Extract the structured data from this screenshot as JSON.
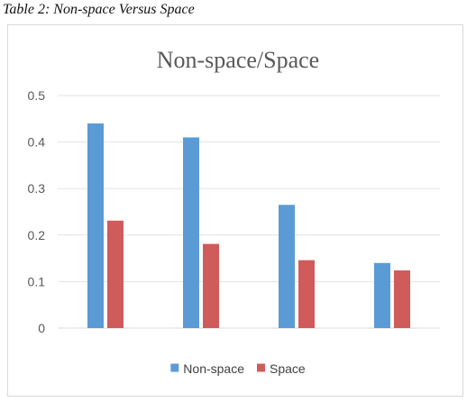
{
  "caption": "Table 2: Non-space Versus Space",
  "chart_data": {
    "type": "bar",
    "title": "Non-space/Space",
    "xlabel": "",
    "ylabel": "",
    "categories": [
      "",
      "",
      "",
      ""
    ],
    "ylim": [
      0,
      0.5
    ],
    "yticks": [
      "0",
      "0.1",
      "0.2",
      "0.3",
      "0.4",
      "0.5"
    ],
    "grid": true,
    "legend_position": "bottom",
    "series": [
      {
        "name": "Non-space",
        "color": "#5b9bd5",
        "values": [
          0.44,
          0.41,
          0.265,
          0.14
        ]
      },
      {
        "name": "Space",
        "color": "#d05b5b",
        "values": [
          0.231,
          0.181,
          0.146,
          0.124
        ]
      }
    ]
  }
}
